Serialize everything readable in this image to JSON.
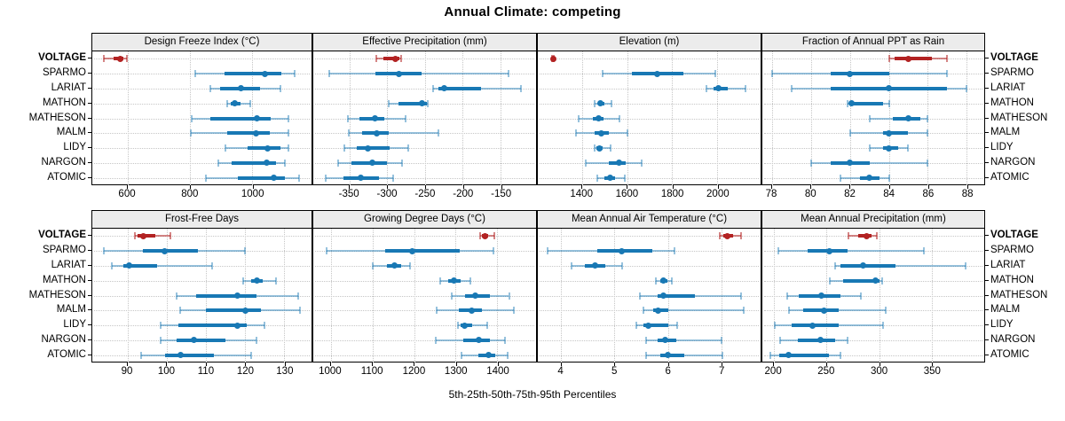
{
  "title": "Annual Climate: competing",
  "caption": "5th-25th-50th-75th-95th Percentiles",
  "sites": [
    "VOLTAGE",
    "SPARMO",
    "LARIAT",
    "MATHON",
    "MATHESON",
    "MALM",
    "LIDY",
    "NARGON",
    "ATOMIC"
  ],
  "highlight_site": "VOLTAGE",
  "percentile_labels": [
    "5th",
    "25th",
    "50th",
    "75th",
    "95th"
  ],
  "colors": {
    "highlight": "#B22222",
    "highlight_light": "rgba(178,34,34,0.55)",
    "normal": "#1878B4",
    "normal_light": "rgba(24,120,180,0.45)",
    "strip_bg": "#ececec",
    "grid": "#c6c6c6"
  },
  "chart_data": [
    {
      "type": "dotplot-interval",
      "title": "Design Freeze Index (°C)",
      "row": "top",
      "col": 0,
      "xlim": [
        487,
        1190
      ],
      "ticks": [
        600,
        800,
        1000
      ],
      "series": [
        {
          "site": "VOLTAGE",
          "p": [
            525,
            555,
            577,
            588,
            598
          ]
        },
        {
          "site": "SPARMO",
          "p": [
            817,
            910,
            1042,
            1094,
            1137
          ]
        },
        {
          "site": "LARIAT",
          "p": [
            865,
            897,
            965,
            1024,
            1090
          ]
        },
        {
          "site": "MATHON",
          "p": [
            920,
            932,
            944,
            962,
            993
          ]
        },
        {
          "site": "MATHESON",
          "p": [
            807,
            866,
            1015,
            1060,
            1116
          ]
        },
        {
          "site": "MALM",
          "p": [
            802,
            920,
            1012,
            1055,
            1116
          ]
        },
        {
          "site": "LIDY",
          "p": [
            915,
            984,
            1050,
            1090,
            1116
          ]
        },
        {
          "site": "NARGON",
          "p": [
            890,
            935,
            1047,
            1075,
            1104
          ]
        },
        {
          "site": "ATOMIC",
          "p": [
            852,
            955,
            1070,
            1105,
            1149
          ]
        }
      ]
    },
    {
      "type": "dotplot-interval",
      "title": "Effective Precipitation (mm)",
      "row": "top",
      "col": 1,
      "xlim": [
        -398,
        -103
      ],
      "ticks": [
        -350,
        -300,
        -250,
        -200,
        -150
      ],
      "series": [
        {
          "site": "VOLTAGE",
          "p": [
            -315,
            -305,
            -289,
            -284,
            -282
          ]
        },
        {
          "site": "SPARMO",
          "p": [
            -377,
            -316,
            -285,
            -255,
            -139
          ]
        },
        {
          "site": "LARIAT",
          "p": [
            -239,
            -232,
            -225,
            -176,
            -123
          ]
        },
        {
          "site": "MATHON",
          "p": [
            -298,
            -285,
            -254,
            -248,
            -246
          ]
        },
        {
          "site": "MATHESON",
          "p": [
            -352,
            -337,
            -316,
            -304,
            -276
          ]
        },
        {
          "site": "MALM",
          "p": [
            -351,
            -333,
            -314,
            -298,
            -232
          ]
        },
        {
          "site": "LIDY",
          "p": [
            -357,
            -340,
            -326,
            -297,
            -272
          ]
        },
        {
          "site": "NARGON",
          "p": [
            -365,
            -347,
            -320,
            -301,
            -280
          ]
        },
        {
          "site": "ATOMIC",
          "p": [
            -382,
            -358,
            -335,
            -311,
            -292
          ]
        }
      ]
    },
    {
      "type": "dotplot-interval",
      "title": "Elevation (m)",
      "row": "top",
      "col": 2,
      "xlim": [
        1204,
        2192
      ],
      "ticks": [
        1400,
        1600,
        1800,
        2000
      ],
      "series": [
        {
          "site": "VOLTAGE",
          "p": [
            1266,
            1269,
            1271,
            1273,
            1276
          ]
        },
        {
          "site": "SPARMO",
          "p": [
            1490,
            1620,
            1735,
            1850,
            1990
          ]
        },
        {
          "site": "LARIAT",
          "p": [
            1950,
            1985,
            2005,
            2045,
            2125
          ]
        },
        {
          "site": "MATHON",
          "p": [
            1455,
            1470,
            1482,
            1500,
            1530
          ]
        },
        {
          "site": "MATHESON",
          "p": [
            1385,
            1450,
            1473,
            1495,
            1565
          ]
        },
        {
          "site": "MALM",
          "p": [
            1372,
            1455,
            1487,
            1520,
            1600
          ]
        },
        {
          "site": "LIDY",
          "p": [
            1455,
            1465,
            1477,
            1490,
            1525
          ]
        },
        {
          "site": "NARGON",
          "p": [
            1415,
            1520,
            1565,
            1595,
            1663
          ]
        },
        {
          "site": "ATOMIC",
          "p": [
            1468,
            1500,
            1523,
            1545,
            1590
          ]
        }
      ]
    },
    {
      "type": "dotplot-interval",
      "title": "Fraction of Annual PPT as Rain",
      "row": "top",
      "col": 3,
      "xlim": [
        77.5,
        88.9
      ],
      "ticks": [
        78,
        80,
        82,
        84,
        86,
        88
      ],
      "series": [
        {
          "site": "VOLTAGE",
          "p": [
            84,
            84.3,
            85,
            86.2,
            87
          ]
        },
        {
          "site": "SPARMO",
          "p": [
            78,
            81,
            82,
            84,
            87
          ]
        },
        {
          "site": "LARIAT",
          "p": [
            79,
            81,
            84,
            87,
            88
          ]
        },
        {
          "site": "MATHON",
          "p": [
            81.9,
            82,
            82.1,
            83.7,
            84
          ]
        },
        {
          "site": "MATHESON",
          "p": [
            83,
            84.2,
            85,
            85.6,
            86
          ]
        },
        {
          "site": "MALM",
          "p": [
            82,
            83.7,
            84,
            85,
            86
          ]
        },
        {
          "site": "LIDY",
          "p": [
            83,
            83.7,
            84,
            84.5,
            85
          ]
        },
        {
          "site": "NARGON",
          "p": [
            80,
            81,
            82,
            83,
            86
          ]
        },
        {
          "site": "ATOMIC",
          "p": [
            81.5,
            82.5,
            83,
            83.5,
            84
          ]
        }
      ]
    },
    {
      "type": "dotplot-interval",
      "title": "Frost-Free Days",
      "row": "bottom",
      "col": 0,
      "xlim": [
        81,
        137
      ],
      "ticks": [
        90,
        100,
        110,
        120,
        130
      ],
      "series": [
        {
          "site": "VOLTAGE",
          "p": [
            91.8,
            92.5,
            94,
            97,
            101
          ]
        },
        {
          "site": "SPARMO",
          "p": [
            84,
            94,
            99.5,
            108,
            120
          ]
        },
        {
          "site": "LARIAT",
          "p": [
            86,
            89,
            90.5,
            97.5,
            111.5
          ]
        },
        {
          "site": "MATHON",
          "p": [
            119.5,
            121.5,
            123,
            124.5,
            128
          ]
        },
        {
          "site": "MATHESON",
          "p": [
            102.5,
            107.5,
            118,
            123,
            133.5
          ]
        },
        {
          "site": "MALM",
          "p": [
            103.5,
            110,
            120,
            124,
            134
          ]
        },
        {
          "site": "LIDY",
          "p": [
            98.5,
            103,
            118,
            120.5,
            125
          ]
        },
        {
          "site": "NARGON",
          "p": [
            98.5,
            102.5,
            107,
            115,
            123
          ]
        },
        {
          "site": "ATOMIC",
          "p": [
            93.5,
            99.5,
            103.5,
            112,
            121.5
          ]
        }
      ]
    },
    {
      "type": "dotplot-interval",
      "title": "Growing Degree Days (°C)",
      "row": "bottom",
      "col": 1,
      "xlim": [
        958,
        1493
      ],
      "ticks": [
        1000,
        1100,
        1200,
        1300,
        1400
      ],
      "series": [
        {
          "site": "VOLTAGE",
          "p": [
            1359,
            1364,
            1371,
            1378,
            1392
          ]
        },
        {
          "site": "SPARMO",
          "p": [
            990,
            1130,
            1195,
            1310,
            1390
          ]
        },
        {
          "site": "LARIAT",
          "p": [
            1100,
            1135,
            1152,
            1170,
            1190
          ]
        },
        {
          "site": "MATHON",
          "p": [
            1262,
            1282,
            1295,
            1312,
            1335
          ]
        },
        {
          "site": "MATHESON",
          "p": [
            1290,
            1322,
            1348,
            1382,
            1428
          ]
        },
        {
          "site": "MALM",
          "p": [
            1255,
            1308,
            1338,
            1362,
            1440
          ]
        },
        {
          "site": "LIDY",
          "p": [
            1305,
            1312,
            1322,
            1340,
            1375
          ]
        },
        {
          "site": "NARGON",
          "p": [
            1252,
            1318,
            1355,
            1382,
            1418
          ]
        },
        {
          "site": "ATOMIC",
          "p": [
            1315,
            1355,
            1378,
            1395,
            1425
          ]
        }
      ]
    },
    {
      "type": "dotplot-interval",
      "title": "Mean Annual Air Temperature (°C)",
      "row": "bottom",
      "col": 2,
      "xlim": [
        3.56,
        7.74
      ],
      "ticks": [
        4,
        5,
        6,
        7
      ],
      "series": [
        {
          "site": "VOLTAGE",
          "p": [
            6.98,
            7.04,
            7.12,
            7.22,
            7.38
          ]
        },
        {
          "site": "SPARMO",
          "p": [
            3.75,
            4.67,
            5.13,
            5.71,
            6.13
          ]
        },
        {
          "site": "LARIAT",
          "p": [
            4.2,
            4.45,
            4.63,
            4.83,
            5.14
          ]
        },
        {
          "site": "MATHON",
          "p": [
            5.78,
            5.86,
            5.92,
            5.99,
            6.07
          ]
        },
        {
          "site": "MATHESON",
          "p": [
            5.47,
            5.8,
            5.91,
            6.5,
            7.38
          ]
        },
        {
          "site": "MALM",
          "p": [
            5.55,
            5.72,
            5.81,
            6.0,
            7.42
          ]
        },
        {
          "site": "LIDY",
          "p": [
            5.41,
            5.55,
            5.64,
            6.0,
            6.17
          ]
        },
        {
          "site": "NARGON",
          "p": [
            5.6,
            5.8,
            5.95,
            6.15,
            7.0
          ]
        },
        {
          "site": "ATOMIC",
          "p": [
            5.6,
            5.85,
            6.0,
            6.3,
            7.03
          ]
        }
      ]
    },
    {
      "type": "dotplot-interval",
      "title": "Mean Annual Precipitation (mm)",
      "row": "bottom",
      "col": 3,
      "xlim": [
        189,
        400
      ],
      "ticks": [
        200,
        250,
        300,
        350
      ],
      "series": [
        {
          "site": "VOLTAGE",
          "p": [
            271,
            280,
            288,
            293,
            298
          ]
        },
        {
          "site": "SPARMO",
          "p": [
            204,
            232,
            253,
            270,
            343
          ]
        },
        {
          "site": "LARIAT",
          "p": [
            258,
            263,
            285,
            316,
            382
          ]
        },
        {
          "site": "MATHON",
          "p": [
            253,
            266,
            297,
            300,
            303
          ]
        },
        {
          "site": "MATHESON",
          "p": [
            213,
            224,
            245,
            263,
            283
          ]
        },
        {
          "site": "MALM",
          "p": [
            214,
            228,
            248,
            262,
            306
          ]
        },
        {
          "site": "LIDY",
          "p": [
            201,
            217,
            237,
            262,
            304
          ]
        },
        {
          "site": "NARGON",
          "p": [
            206,
            223,
            244,
            258,
            270
          ]
        },
        {
          "site": "ATOMIC",
          "p": [
            197,
            205,
            214,
            252,
            263
          ]
        }
      ]
    }
  ]
}
